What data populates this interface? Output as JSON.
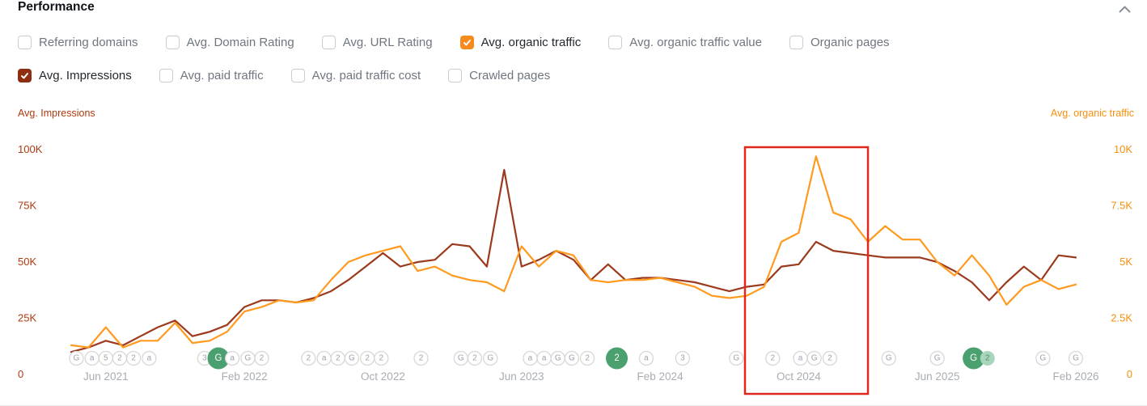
{
  "header": {
    "title": "Performance"
  },
  "colors": {
    "impressions_line": "#9C3A1D",
    "impressions_tick": "#B0390F",
    "organic_line": "#FF9A1F",
    "organic_tick": "#F78F0E",
    "highlight_box": "#E0281E",
    "x_label_gray": "#A8ADB3",
    "marker_border": "#D8D8D8",
    "marker_text": "#9CA3AF",
    "event_green": "#4AA06F",
    "event_green_light": "#A9D5BC",
    "event_text_light": "#4D8C68"
  },
  "filters": {
    "row1": [
      {
        "label": "Referring domains",
        "checked": false
      },
      {
        "label": "Avg. Domain Rating",
        "checked": false
      },
      {
        "label": "Avg. URL Rating",
        "checked": false
      },
      {
        "label": "Avg. organic traffic",
        "checked": true,
        "color": "#F78A1D"
      },
      {
        "label": "Avg. organic traffic value",
        "checked": false
      },
      {
        "label": "Organic pages",
        "checked": false
      }
    ],
    "row2": [
      {
        "label": "Avg. Impressions",
        "checked": true,
        "color": "#8C2E0F"
      },
      {
        "label": "Avg. paid traffic",
        "checked": false
      },
      {
        "label": "Avg. paid traffic cost",
        "checked": false
      },
      {
        "label": "Crawled pages",
        "checked": false
      }
    ]
  },
  "chart_data": {
    "type": "line",
    "points": 59,
    "x_start": "Apr 2021",
    "x_end": "Feb 2026",
    "x_tick_labels": [
      {
        "text": "Jun 2021",
        "index": 2
      },
      {
        "text": "Feb 2022",
        "index": 10
      },
      {
        "text": "Oct 2022",
        "index": 18
      },
      {
        "text": "Jun 2023",
        "index": 26
      },
      {
        "text": "Feb 2024",
        "index": 34
      },
      {
        "text": "Oct 2024",
        "index": 42
      },
      {
        "text": "Jun 2025",
        "index": 50
      },
      {
        "text": "Feb 2026",
        "index": 58
      }
    ],
    "left_axis": {
      "label": "Avg. Impressions",
      "ticks": [
        "100K",
        "75K",
        "50K",
        "25K",
        "0"
      ],
      "max_thousands": 100
    },
    "right_axis": {
      "label": "Avg. organic traffic",
      "ticks": [
        "10K",
        "7.5K",
        "5K",
        "2.5K",
        "0"
      ],
      "max_thousands": 10
    },
    "series": [
      {
        "name": "Avg. Impressions",
        "axis": "left",
        "values_thousands": [
          10,
          12,
          15,
          13,
          17,
          21,
          24,
          17,
          19,
          22,
          30,
          33,
          33,
          32,
          34,
          37,
          42,
          48,
          54,
          48,
          50,
          51,
          58,
          57,
          48,
          91,
          48,
          51,
          55,
          51,
          42,
          49,
          42,
          43,
          43,
          42,
          41,
          39,
          37,
          39,
          40,
          48,
          49,
          59,
          55,
          54,
          53,
          52,
          52,
          52,
          50,
          46,
          41,
          33,
          41,
          48,
          42,
          53,
          52
        ]
      },
      {
        "name": "Avg. organic traffic",
        "axis": "right",
        "values_thousands": [
          1.3,
          1.2,
          2.1,
          1.2,
          1.5,
          1.5,
          2.3,
          1.4,
          1.5,
          1.9,
          2.8,
          3.0,
          3.3,
          3.2,
          3.3,
          4.2,
          5.0,
          5.3,
          5.5,
          5.7,
          4.6,
          4.8,
          4.4,
          4.2,
          4.1,
          3.7,
          5.7,
          4.8,
          5.5,
          5.3,
          4.2,
          4.1,
          4.2,
          4.2,
          4.3,
          4.1,
          3.9,
          3.5,
          3.4,
          3.5,
          3.9,
          5.9,
          6.3,
          9.7,
          7.2,
          6.9,
          5.9,
          6.6,
          6.0,
          6.0,
          5.0,
          4.4,
          5.3,
          4.4,
          3.1,
          3.9,
          4.2,
          3.8,
          4.0
        ]
      }
    ],
    "annotation_rect": {
      "start_index": 38.9,
      "end_index": 46.0
    },
    "timeline_markers": [
      {
        "index": 0.3,
        "label": "G",
        "type": "normal"
      },
      {
        "index": 1.2,
        "label": "a",
        "type": "normal"
      },
      {
        "index": 2.0,
        "label": "5",
        "type": "normal"
      },
      {
        "index": 2.8,
        "label": "2",
        "type": "normal"
      },
      {
        "index": 3.6,
        "label": "2",
        "type": "normal"
      },
      {
        "index": 4.5,
        "label": "a",
        "type": "normal"
      },
      {
        "index": 7.7,
        "label": "3",
        "type": "normal"
      },
      {
        "index": 8.5,
        "label": "G",
        "type": "event"
      },
      {
        "index": 9.3,
        "label": "a",
        "type": "normal"
      },
      {
        "index": 10.2,
        "label": "G",
        "type": "normal"
      },
      {
        "index": 11.0,
        "label": "2",
        "type": "normal"
      },
      {
        "index": 13.7,
        "label": "2",
        "type": "normal"
      },
      {
        "index": 14.6,
        "label": "a",
        "type": "normal"
      },
      {
        "index": 15.4,
        "label": "2",
        "type": "normal"
      },
      {
        "index": 16.2,
        "label": "G",
        "type": "normal"
      },
      {
        "index": 17.1,
        "label": "2",
        "type": "normal"
      },
      {
        "index": 17.9,
        "label": "2",
        "type": "normal"
      },
      {
        "index": 20.2,
        "label": "2",
        "type": "normal"
      },
      {
        "index": 22.5,
        "label": "G",
        "type": "normal"
      },
      {
        "index": 23.3,
        "label": "2",
        "type": "normal"
      },
      {
        "index": 24.2,
        "label": "G",
        "type": "normal"
      },
      {
        "index": 26.5,
        "label": "a",
        "type": "normal"
      },
      {
        "index": 27.3,
        "label": "a",
        "type": "normal"
      },
      {
        "index": 28.1,
        "label": "G",
        "type": "normal"
      },
      {
        "index": 28.9,
        "label": "G",
        "type": "normal"
      },
      {
        "index": 29.8,
        "label": "2",
        "type": "normal"
      },
      {
        "index": 31.5,
        "label": "2",
        "type": "event"
      },
      {
        "index": 33.2,
        "label": "a",
        "type": "normal"
      },
      {
        "index": 35.3,
        "label": "3",
        "type": "normal"
      },
      {
        "index": 38.4,
        "label": "G",
        "type": "normal"
      },
      {
        "index": 40.5,
        "label": "2",
        "type": "normal"
      },
      {
        "index": 42.1,
        "label": "a",
        "type": "normal"
      },
      {
        "index": 42.9,
        "label": "G",
        "type": "normal"
      },
      {
        "index": 43.8,
        "label": "2",
        "type": "normal"
      },
      {
        "index": 47.2,
        "label": "G",
        "type": "normal"
      },
      {
        "index": 50.0,
        "label": "G",
        "type": "normal"
      },
      {
        "index": 52.1,
        "label": "G",
        "type": "event"
      },
      {
        "index": 52.9,
        "label": "2",
        "type": "event-small"
      },
      {
        "index": 56.1,
        "label": "G",
        "type": "normal"
      },
      {
        "index": 58.0,
        "label": "G",
        "type": "normal"
      }
    ]
  }
}
